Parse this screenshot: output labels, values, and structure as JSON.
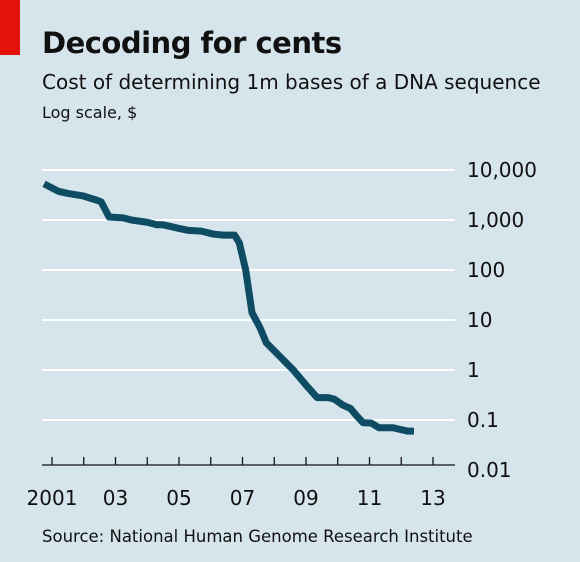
{
  "header": {
    "title": "Decoding for cents",
    "subtitle": "Cost of determining 1m bases of a DNA sequence",
    "note": "Log scale, $"
  },
  "footer": {
    "source": "Source: National Human Genome Research Institute"
  },
  "colors": {
    "background": "#d6e4ec",
    "line": "#0d4c63",
    "gridline": "#ffffff",
    "brand_tag": "#e3120b"
  },
  "chart_data": {
    "type": "line",
    "title": "Decoding for cents",
    "subtitle": "Cost of determining 1m bases of a DNA sequence",
    "ylabel": "Log scale, $",
    "yscale": "log",
    "ylim": [
      0.01,
      10000
    ],
    "xlim": [
      2000.9,
      2013.3
    ],
    "grid": true,
    "legend": "none",
    "y_ticks": [
      {
        "value": 10000,
        "label": "10,000"
      },
      {
        "value": 1000,
        "label": "1,000"
      },
      {
        "value": 100,
        "label": "100"
      },
      {
        "value": 10,
        "label": "10"
      },
      {
        "value": 1,
        "label": "1"
      },
      {
        "value": 0.1,
        "label": "0.1"
      },
      {
        "value": 0.01,
        "label": "0.01"
      }
    ],
    "x_tick_labels": [
      {
        "value": 2001,
        "label": "2001"
      },
      {
        "value": 2003,
        "label": "03"
      },
      {
        "value": 2005,
        "label": "05"
      },
      {
        "value": 2007,
        "label": "07"
      },
      {
        "value": 2009,
        "label": "09"
      },
      {
        "value": 2011,
        "label": "11"
      },
      {
        "value": 2013,
        "label": "13"
      }
    ],
    "x_minor_ticks": [
      2001,
      2002,
      2003,
      2004,
      2005,
      2006,
      2007,
      2008,
      2009,
      2010,
      2011,
      2012,
      2013
    ],
    "series": [
      {
        "points": [
          [
            2000.75,
            5300
          ],
          [
            2001.2,
            3750
          ],
          [
            2001.5,
            3400
          ],
          [
            2002.0,
            3000
          ],
          [
            2002.4,
            2500
          ],
          [
            2002.55,
            2300
          ],
          [
            2002.8,
            1150
          ],
          [
            2003.25,
            1100
          ],
          [
            2003.5,
            1000
          ],
          [
            2004.0,
            900
          ],
          [
            2004.3,
            800
          ],
          [
            2004.5,
            800
          ],
          [
            2005.0,
            680
          ],
          [
            2005.3,
            620
          ],
          [
            2005.7,
            600
          ],
          [
            2006.1,
            520
          ],
          [
            2006.4,
            500
          ],
          [
            2006.75,
            500
          ],
          [
            2006.9,
            350
          ],
          [
            2007.1,
            100
          ],
          [
            2007.3,
            14
          ],
          [
            2007.55,
            7
          ],
          [
            2007.75,
            3.5
          ],
          [
            2008.2,
            1.8
          ],
          [
            2008.6,
            1.0
          ],
          [
            2009.0,
            0.5
          ],
          [
            2009.35,
            0.28
          ],
          [
            2009.7,
            0.28
          ],
          [
            2009.9,
            0.26
          ],
          [
            2010.15,
            0.2
          ],
          [
            2010.4,
            0.17
          ],
          [
            2010.6,
            0.12
          ],
          [
            2010.8,
            0.088
          ],
          [
            2011.05,
            0.087
          ],
          [
            2011.3,
            0.07
          ],
          [
            2011.5,
            0.07
          ],
          [
            2011.75,
            0.07
          ],
          [
            2011.9,
            0.066
          ],
          [
            2012.2,
            0.06
          ],
          [
            2012.4,
            0.06
          ]
        ]
      }
    ]
  }
}
